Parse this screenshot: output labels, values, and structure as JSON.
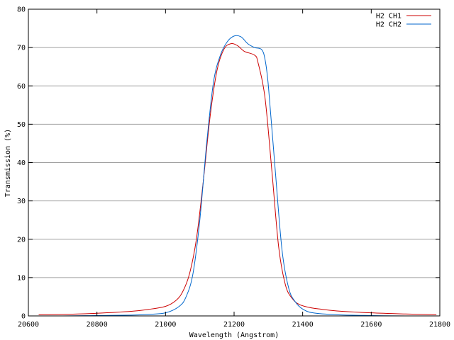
{
  "chart_data": {
    "type": "line",
    "title": "",
    "xlabel": "Wavelength (Angstrom)",
    "ylabel": "Transmission (%)",
    "xlim": [
      20600,
      21800
    ],
    "ylim": [
      0,
      80
    ],
    "x_ticks": [
      "20600",
      "20800",
      "21000",
      "21200",
      "21400",
      "21600",
      "21800"
    ],
    "y_ticks": [
      "0",
      "10",
      "20",
      "30",
      "40",
      "50",
      "60",
      "70",
      "80"
    ],
    "grid": "horizontal",
    "legend_position": "top-right",
    "series": [
      {
        "name": "H2 CH1",
        "color": "#cc0000",
        "x": [
          20630,
          20700,
          20800,
          20900,
          20950,
          21000,
          21030,
          21050,
          21070,
          21090,
          21110,
          21130,
          21150,
          21170,
          21190,
          21210,
          21230,
          21260,
          21270,
          21290,
          21310,
          21330,
          21350,
          21370,
          21390,
          21420,
          21450,
          21500,
          21600,
          21700,
          21790
        ],
        "y": [
          0.3,
          0.4,
          0.7,
          1.2,
          1.7,
          2.5,
          4.0,
          6.3,
          11.0,
          20.0,
          35.0,
          52.0,
          64.0,
          69.5,
          71.0,
          70.5,
          69.0,
          68.0,
          66.0,
          57.0,
          38.0,
          18.0,
          8.0,
          4.5,
          3.0,
          2.2,
          1.8,
          1.3,
          0.8,
          0.5,
          0.3
        ]
      },
      {
        "name": "H2 CH2",
        "color": "#0066cc",
        "x": [
          20630,
          20700,
          20800,
          20900,
          20950,
          21000,
          21040,
          21060,
          21080,
          21100,
          21120,
          21140,
          21160,
          21180,
          21200,
          21220,
          21240,
          21260,
          21280,
          21290,
          21300,
          21320,
          21340,
          21360,
          21380,
          21400,
          21430,
          21500,
          21600,
          21700,
          21790
        ],
        "y": [
          0.0,
          0.0,
          0.1,
          0.2,
          0.4,
          0.8,
          2.5,
          5.0,
          11.0,
          25.0,
          45.0,
          61.0,
          68.0,
          71.5,
          73.0,
          72.8,
          71.0,
          70.0,
          69.5,
          67.0,
          60.0,
          38.0,
          17.0,
          7.0,
          3.5,
          1.8,
          0.8,
          0.3,
          0.1,
          0.0,
          0.0
        ]
      }
    ]
  }
}
